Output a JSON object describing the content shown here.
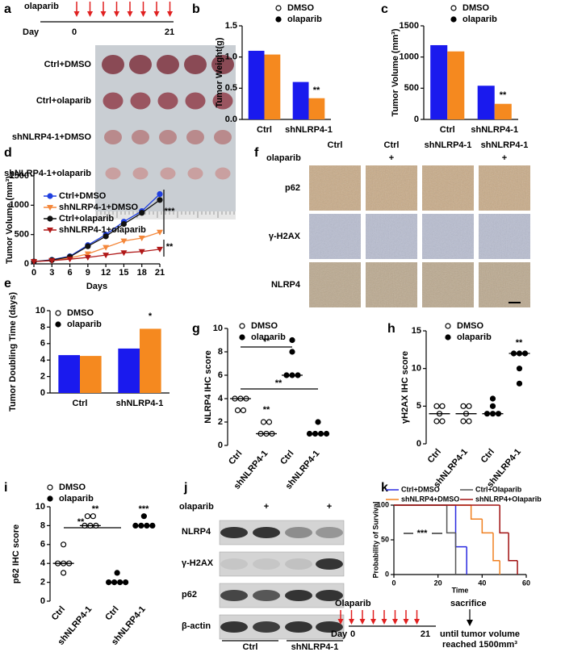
{
  "chart_data": [
    {
      "type": "bar",
      "label": "b",
      "ylabel": "Tumor Weight(g)",
      "categories": [
        "Ctrl",
        "shNLRP4-1"
      ],
      "series": [
        {
          "name": "DMSO",
          "color": "#1a1aee",
          "marker": "open",
          "values": [
            1.1,
            0.6
          ]
        },
        {
          "name": "olaparib",
          "color": "#f5891f",
          "marker": "filled",
          "values": [
            1.04,
            0.34
          ]
        }
      ],
      "ylim": [
        0,
        1.5
      ],
      "yticks": [
        {
          "value": 0,
          "label": "0.0"
        },
        {
          "value": 0.5,
          "label": "0.5"
        },
        {
          "value": 1,
          "label": "1.0"
        },
        {
          "value": 1.5,
          "label": "1.5"
        }
      ],
      "annotations": [
        "**"
      ]
    },
    {
      "type": "bar",
      "label": "c",
      "ylabel": "Tumor Volume (mm³)",
      "categories": [
        "Ctrl",
        "shNLRP4-1"
      ],
      "series": [
        {
          "name": "DMSO",
          "color": "#1a1aee",
          "marker": "open",
          "values": [
            1190,
            540
          ]
        },
        {
          "name": "olaparib",
          "color": "#f5891f",
          "marker": "filled",
          "values": [
            1090,
            250
          ]
        }
      ],
      "ylim": [
        0,
        1500
      ],
      "yticks": [
        0,
        500,
        1000,
        1500
      ],
      "annotations": [
        "**"
      ]
    },
    {
      "type": "line",
      "label": "d",
      "ylabel": "Tumor Volume (mm³)",
      "xlabel": "Days",
      "x": [
        0,
        3,
        6,
        9,
        12,
        15,
        18,
        21
      ],
      "series": [
        {
          "name": "Ctrl+DMSO",
          "color": "#1f3fe0",
          "marker": "circle",
          "values": [
            40,
            70,
            130,
            320,
            500,
            720,
            900,
            1190
          ]
        },
        {
          "name": "shNLRP4-1+DMSO",
          "color": "#f4873a",
          "marker": "triangle-down",
          "values": [
            40,
            60,
            100,
            170,
            280,
            390,
            440,
            540
          ]
        },
        {
          "name": "Ctrl+olaparib",
          "color": "#111111",
          "marker": "circle",
          "values": [
            40,
            65,
            120,
            300,
            470,
            680,
            870,
            1090
          ]
        },
        {
          "name": "shNLRP4-1+olaparib",
          "color": "#b01818",
          "marker": "triangle-down",
          "values": [
            40,
            55,
            80,
            110,
            150,
            190,
            210,
            250
          ]
        }
      ],
      "xlim": [
        0,
        21
      ],
      "xticks": [
        0,
        3,
        6,
        9,
        12,
        15,
        18,
        21
      ],
      "ylim": [
        0,
        1500
      ],
      "yticks": [
        0,
        500,
        1000,
        1500
      ],
      "annotations": [
        "***",
        "**"
      ]
    },
    {
      "type": "bar",
      "label": "e",
      "ylabel": "Tumor Doubling Time (days)",
      "categories": [
        "Ctrl",
        "shNLRP4-1"
      ],
      "series": [
        {
          "name": "DMSO",
          "color": "#1a1aee",
          "marker": "open",
          "values": [
            4.6,
            5.4
          ]
        },
        {
          "name": "olaparib",
          "color": "#f5891f",
          "marker": "filled",
          "values": [
            4.5,
            7.8
          ]
        }
      ],
      "ylim": [
        0,
        10
      ],
      "yticks": [
        0,
        2,
        4,
        6,
        8,
        10
      ],
      "annotations": [
        "*"
      ]
    },
    {
      "type": "dot",
      "label": "g",
      "ylabel": "NLRP4 IHC score",
      "categories": [
        "Ctrl",
        "shNLRP4-1",
        "Ctrl",
        "shNLRP4-1"
      ],
      "series": [
        {
          "name": "DMSO",
          "color": "#000000",
          "marker": "open",
          "values": [
            [
              4,
              4,
              4,
              3,
              3
            ],
            [
              2,
              2,
              1,
              1,
              1
            ],
            null,
            null
          ],
          "medians": [
            4,
            1,
            null,
            null
          ]
        },
        {
          "name": "olaparib",
          "color": "#000000",
          "marker": "filled",
          "values": [
            null,
            null,
            [
              9,
              8,
              6,
              6,
              6
            ],
            [
              2,
              1,
              1,
              1,
              1
            ]
          ],
          "medians": [
            null,
            null,
            6,
            1
          ]
        }
      ],
      "ylim": [
        0,
        10
      ],
      "yticks": [
        0,
        2,
        4,
        6,
        8,
        10
      ],
      "annotations": [
        "**",
        "**",
        "**"
      ]
    },
    {
      "type": "dot",
      "label": "h",
      "ylabel": "γH2AX IHC score",
      "categories": [
        "Ctrl",
        "shNLRP4-1",
        "Ctrl",
        "shNLRP4-1"
      ],
      "series": [
        {
          "name": "DMSO",
          "color": "#000000",
          "marker": "open",
          "values": [
            [
              5,
              5,
              4,
              3,
              3
            ],
            [
              5,
              5,
              4,
              3,
              3
            ],
            null,
            null
          ],
          "medians": [
            4,
            4,
            null,
            null
          ]
        },
        {
          "name": "olaparib",
          "color": "#000000",
          "marker": "filled",
          "values": [
            null,
            null,
            [
              6,
              5,
              4,
              4,
              4
            ],
            [
              12,
              12,
              12,
              10,
              8
            ]
          ],
          "medians": [
            null,
            null,
            4,
            12
          ]
        }
      ],
      "ylim": [
        0,
        15
      ],
      "yticks": [
        0,
        5,
        10,
        15
      ],
      "annotations": [
        "**"
      ]
    },
    {
      "type": "dot",
      "label": "i",
      "ylabel": "p62 IHC score",
      "categories": [
        "Ctrl",
        "shNLRP4-1",
        "Ctrl",
        "shNLRP4-1"
      ],
      "series": [
        {
          "name": "DMSO",
          "color": "#000000",
          "marker": "open",
          "values": [
            [
              6,
              4,
              4,
              4,
              3
            ],
            [
              9,
              9,
              8,
              8,
              8
            ],
            null,
            null
          ],
          "medians": [
            4,
            8,
            null,
            null
          ]
        },
        {
          "name": "olaparib",
          "color": "#000000",
          "marker": "filled",
          "values": [
            null,
            null,
            [
              3,
              2,
              2,
              2,
              2
            ],
            [
              9,
              8,
              8,
              8,
              8
            ]
          ],
          "medians": [
            null,
            null,
            2,
            8
          ]
        }
      ],
      "ylim": [
        0,
        10
      ],
      "yticks": [
        0,
        2,
        4,
        6,
        8,
        10
      ],
      "annotations": [
        "**",
        "**",
        "***"
      ]
    },
    {
      "type": "step",
      "label": "k",
      "ylabel": "Probability of Survival",
      "xlabel": "Time",
      "series": [
        {
          "name": "Ctrl+DMSO",
          "color": "#2a2ae0",
          "x": [
            0,
            28,
            33
          ],
          "values": [
            100,
            40,
            0
          ]
        },
        {
          "name": "shNLRP4+DMSO",
          "color": "#f08020",
          "x": [
            0,
            35,
            40,
            45,
            48
          ],
          "values": [
            100,
            80,
            60,
            20,
            0
          ]
        },
        {
          "name": "Ctrl+Olaparib",
          "color": "#555555",
          "x": [
            0,
            24,
            28
          ],
          "values": [
            100,
            60,
            0
          ]
        },
        {
          "name": "shNLRP4+Olaparib",
          "color": "#a01010",
          "x": [
            0,
            48,
            52,
            56
          ],
          "values": [
            100,
            60,
            20,
            0
          ]
        }
      ],
      "xlim": [
        0,
        60
      ],
      "xticks": [
        0,
        20,
        40,
        60
      ],
      "ylim": [
        0,
        100
      ],
      "yticks": [
        0,
        50,
        100
      ],
      "annotations": [
        "***"
      ]
    }
  ],
  "panel_a": {
    "label": "a",
    "drug": "olaparib",
    "day": "Day",
    "start": "0",
    "end": "21",
    "groups": [
      "Ctrl+DMSO",
      "Ctrl+olaparib",
      "shNLRP4-1+DMSO",
      "shNLRP4-1+olaparib"
    ]
  },
  "panel_f": {
    "label": "f",
    "columns": [
      "Ctrl",
      "Ctrl",
      "shNLRP4-1",
      "shNLRP4-1"
    ],
    "treatment": "olaparib",
    "treated": [
      "+",
      "+"
    ],
    "rows": [
      "p62",
      "γ-H2AX",
      "NLRP4"
    ]
  },
  "panel_j": {
    "label": "j",
    "treatment": "olaparib",
    "treated": [
      "+",
      "+"
    ],
    "proteins": [
      "NLRP4",
      "γ-H2AX",
      "p62",
      "β-actin"
    ],
    "groups": [
      "Ctrl",
      "shNLRP4-1"
    ]
  },
  "schedule": {
    "drug": "Olaparib",
    "day": "Day",
    "start": "0",
    "end": "21",
    "endpoint": "until tumor volume",
    "endpoint_2": "reached 1500mm³",
    "event": "sacrifice"
  }
}
